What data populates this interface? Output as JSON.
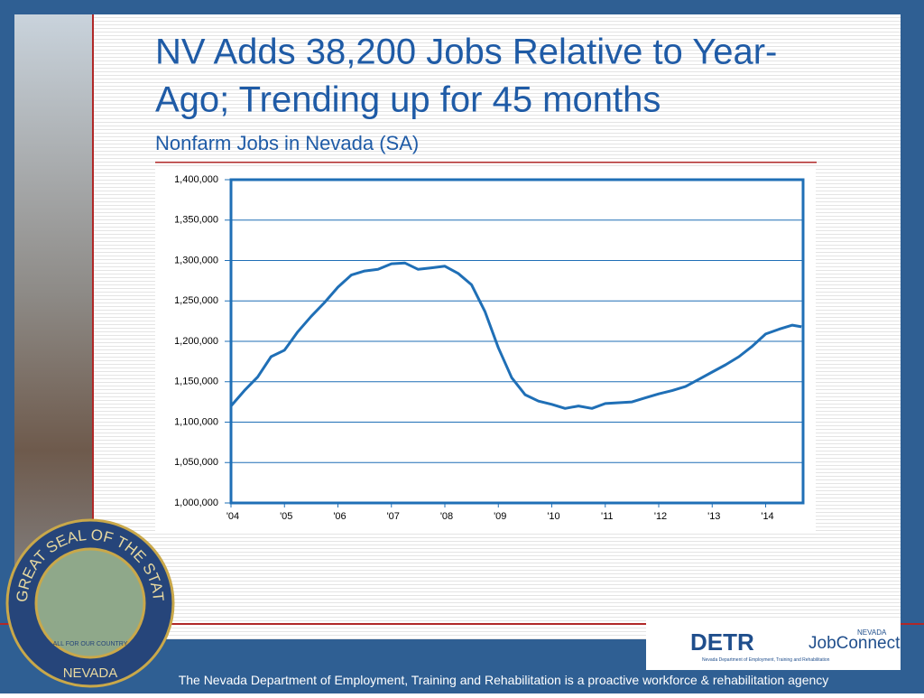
{
  "chart_data": {
    "type": "line",
    "title": [
      "NV Adds 38,200 Jobs Relative to Year-",
      "Ago; Trending up for 45 months"
    ],
    "subtitle": "Nonfarm Jobs in Nevada (SA)",
    "x": [
      2004,
      2004.25,
      2004.5,
      2004.75,
      2005,
      2005.25,
      2005.5,
      2005.75,
      2006,
      2006.25,
      2006.5,
      2006.75,
      2007,
      2007.25,
      2007.5,
      2007.75,
      2008,
      2008.25,
      2008.5,
      2008.75,
      2009,
      2009.25,
      2009.5,
      2009.75,
      2010,
      2010.25,
      2010.5,
      2010.75,
      2011,
      2011.25,
      2011.5,
      2011.75,
      2012,
      2012.25,
      2012.5,
      2012.75,
      2013,
      2013.25,
      2013.5,
      2013.75,
      2014,
      2014.25,
      2014.5,
      2014.67
    ],
    "values": [
      1120000,
      1139000,
      1156000,
      1181000,
      1189000,
      1212000,
      1231000,
      1248000,
      1267000,
      1282000,
      1287000,
      1289000,
      1296000,
      1297000,
      1289000,
      1291000,
      1293000,
      1284000,
      1270000,
      1237000,
      1192000,
      1155000,
      1134000,
      1126000,
      1122000,
      1117000,
      1120000,
      1117000,
      1123000,
      1124000,
      1125000,
      1130000,
      1135000,
      1139000,
      1144000,
      1153000,
      1162000,
      1171000,
      1181000,
      1194000,
      1209000,
      1215000,
      1220000,
      1218000
    ],
    "color": "#1f6fb6",
    "xlim": [
      2004,
      2014.7
    ],
    "xticks": [
      {
        "value": 2004,
        "label": "'04"
      },
      {
        "value": 2005,
        "label": "'05"
      },
      {
        "value": 2006,
        "label": "'06"
      },
      {
        "value": 2007,
        "label": "'07"
      },
      {
        "value": 2008,
        "label": "'08"
      },
      {
        "value": 2009,
        "label": "'09"
      },
      {
        "value": 2010,
        "label": "'10"
      },
      {
        "value": 2011,
        "label": "'11"
      },
      {
        "value": 2012,
        "label": "'12"
      },
      {
        "value": 2013,
        "label": "'13"
      },
      {
        "value": 2014,
        "label": "'14"
      }
    ],
    "ylim": [
      1000000,
      1400000
    ],
    "yticks": [
      {
        "value": 1000000,
        "label": "1,000,000"
      },
      {
        "value": 1050000,
        "label": "1,050,000"
      },
      {
        "value": 1100000,
        "label": "1,100,000"
      },
      {
        "value": 1150000,
        "label": "1,150,000"
      },
      {
        "value": 1200000,
        "label": "1,200,000"
      },
      {
        "value": 1250000,
        "label": "1,250,000"
      },
      {
        "value": 1300000,
        "label": "1,300,000"
      },
      {
        "value": 1350000,
        "label": "1,350,000"
      },
      {
        "value": 1400000,
        "label": "1,400,000"
      }
    ],
    "grid": true
  },
  "footer": "The Nevada Department of Employment, Training and Rehabilitation is a proactive workforce & rehabilitation agency",
  "logos": {
    "detr": "DETR",
    "detr_sub": "Nevada Department of Employment, Training and Rehabilitation",
    "state": "NEVADA",
    "jobconnect": "JobConnect"
  },
  "seal": {
    "ring": "THE GREAT SEAL OF THE STATE OF",
    "bottom": "NEVADA",
    "motto": "ALL FOR OUR COUNTRY"
  }
}
